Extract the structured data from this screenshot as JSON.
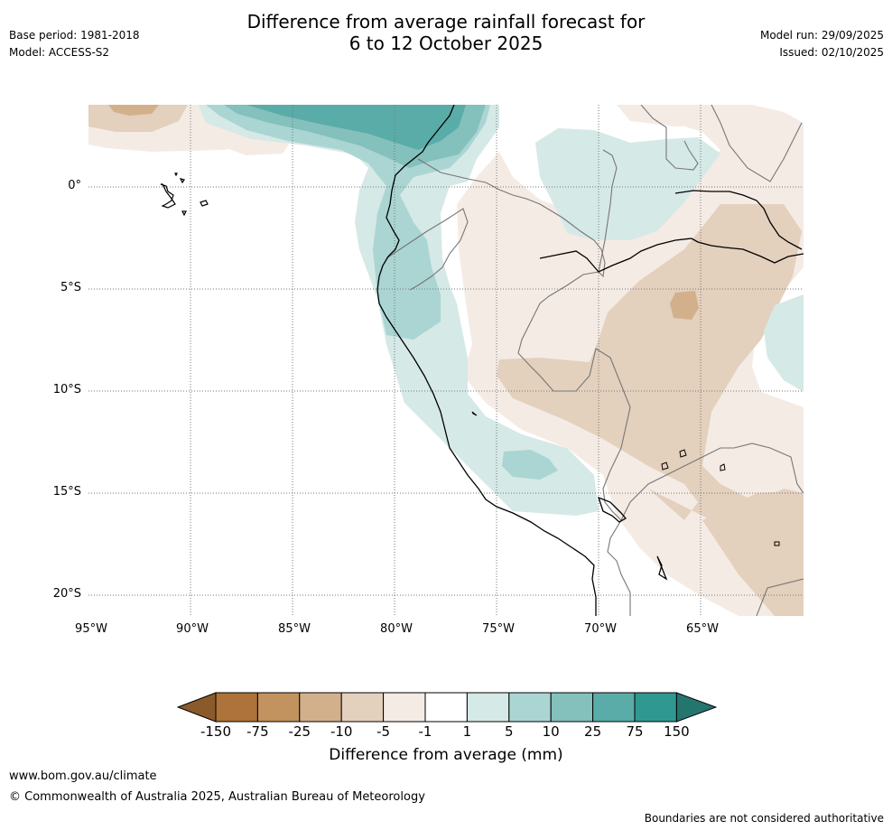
{
  "header": {
    "title_line1": "Difference from average rainfall forecast for",
    "title_line2": "6 to 12 October 2025",
    "base_period": "Base period: 1981-2018",
    "model": "Model: ACCESS-S2",
    "model_run": "Model run: 29/09/2025",
    "issued": "Issued: 02/10/2025"
  },
  "map": {
    "region": "Western South America (Peru, Ecuador) and Galapagos Islands",
    "lat_labels": [
      "0°",
      "5°S",
      "10°S",
      "15°S",
      "20°S"
    ],
    "lon_labels": [
      "95°W",
      "90°W",
      "85°W",
      "80°W",
      "75°W",
      "70°W",
      "65°W"
    ]
  },
  "colorbar": {
    "title": "Difference from average (mm)",
    "tick_labels": [
      "-150",
      "-75",
      "-25",
      "-10",
      "-5",
      "-1",
      "1",
      "5",
      "10",
      "25",
      "75",
      "150"
    ],
    "colors": [
      "#8b5a2b",
      "#ad733a",
      "#c2935f",
      "#d3b08c",
      "#e3d0bd",
      "#f4ebe5",
      "#ffffff",
      "#d5e9e7",
      "#aad5d2",
      "#84c0bc",
      "#5aaca8",
      "#2f9991",
      "#25756f"
    ]
  },
  "footer": {
    "website": "www.bom.gov.au/climate",
    "copyright": "© Commonwealth of Australia 2025, Australian Bureau of Meteorology",
    "disclaimer": "Boundaries are not considered authoritative"
  }
}
